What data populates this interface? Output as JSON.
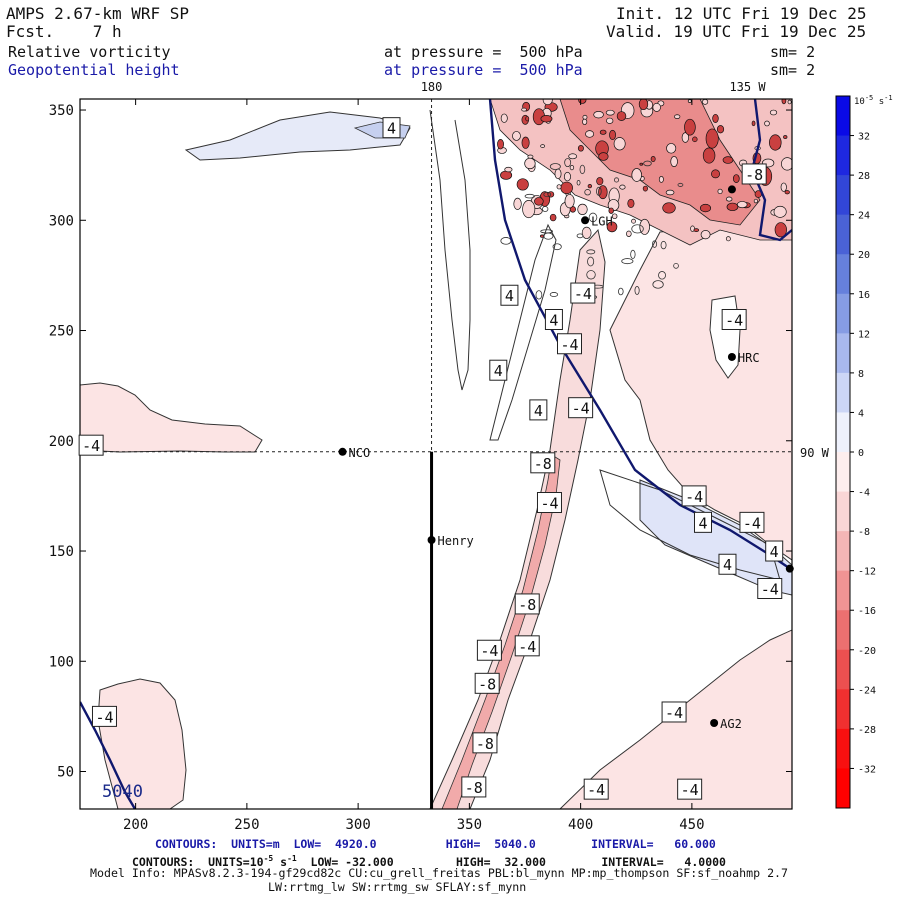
{
  "header": {
    "title": "AMPS 2.67-km WRF SP",
    "fcst": "Fcst.    7 h",
    "init": "Init. 12 UTC Fri 19 Dec 25",
    "valid": "Valid. 19 UTC Fri 19 Dec 25",
    "field1": {
      "name": "Relative vorticity",
      "pressure_label": "at pressure =  500 hPa",
      "sm": "sm= 2"
    },
    "field2": {
      "name": "Geopotential height",
      "pressure_label": "at pressure =  500 hPa",
      "sm": "sm= 2"
    }
  },
  "footer": {
    "line1": "CONTOURS:  UNITS=m  LOW=  4920.0          HIGH=  5040.0        INTERVAL=   60.000",
    "line2_pre": "CONTOURS:  UNITS=10",
    "line2_sup": "-5",
    "line2_mid": " s",
    "line2_sup2": "-1",
    "line2_post": "  LOW= -32.000         HIGH=  32.000        INTERVAL=   4.0000",
    "line3": "Model Info: MPASv8.2.3-194-gf29cd82c CU:cu_grell_freitas PBL:bl_mynn MP:mp_thompson SF:sf_noahmp 2.7",
    "line4": "LW:rrtmg_lw SW:rrtmg_sw SFLAY:sf_mynn"
  },
  "chart_data": {
    "type": "heatmap",
    "title": "Relative vorticity / Geopotential height at 500 hPa",
    "xlim": [
      175,
      495
    ],
    "ylim": [
      33,
      355
    ],
    "x_ticks": [
      200,
      250,
      300,
      350,
      400,
      450
    ],
    "y_ticks": [
      50,
      100,
      150,
      200,
      250,
      300,
      350
    ],
    "meridian_labels": [
      {
        "text": "180",
        "x": 333
      },
      {
        "text": "135 W",
        "x": 475
      }
    ],
    "latitude_label": {
      "text": "90 W",
      "y": 195
    },
    "crosshair": {
      "x": 333,
      "y": 195
    },
    "stations": [
      {
        "name": "NCO",
        "x": 293,
        "y": 195
      },
      {
        "name": "Henry",
        "x": 333,
        "y": 155
      },
      {
        "name": "HRC",
        "x": 468,
        "y": 238
      },
      {
        "name": "AG2",
        "x": 460,
        "y": 72
      },
      {
        "name": "LGH",
        "x": 402,
        "y": 300
      },
      {
        "name": "",
        "x": 468,
        "y": 314
      },
      {
        "name": "",
        "x": 494,
        "y": 142
      }
    ],
    "height_contour_label": "5040",
    "contour_labels": [
      {
        "text": "4",
        "x": 315,
        "y": 342
      },
      {
        "text": "-8",
        "x": 478,
        "y": 321
      },
      {
        "text": "4",
        "x": 368,
        "y": 266
      },
      {
        "text": "-4",
        "x": 401,
        "y": 267
      },
      {
        "text": "4",
        "x": 388,
        "y": 255
      },
      {
        "text": "-4",
        "x": 395,
        "y": 244
      },
      {
        "text": "-4",
        "x": 469,
        "y": 255
      },
      {
        "text": "4",
        "x": 363,
        "y": 232
      },
      {
        "text": "4",
        "x": 381,
        "y": 214
      },
      {
        "text": "-4",
        "x": 400,
        "y": 215
      },
      {
        "text": "-4",
        "x": 180,
        "y": 198
      },
      {
        "text": "-8",
        "x": 383,
        "y": 190
      },
      {
        "text": "-4",
        "x": 386,
        "y": 172
      },
      {
        "text": "-4",
        "x": 451,
        "y": 175
      },
      {
        "text": "4",
        "x": 455,
        "y": 163
      },
      {
        "text": "-4",
        "x": 477,
        "y": 163
      },
      {
        "text": "4",
        "x": 487,
        "y": 150
      },
      {
        "text": "4",
        "x": 466,
        "y": 144
      },
      {
        "text": "-4",
        "x": 485,
        "y": 133
      },
      {
        "text": "-8",
        "x": 376,
        "y": 126
      },
      {
        "text": "-4",
        "x": 376,
        "y": 107
      },
      {
        "text": "-4",
        "x": 359,
        "y": 105
      },
      {
        "text": "-8",
        "x": 358,
        "y": 90
      },
      {
        "text": "-4",
        "x": 186,
        "y": 75
      },
      {
        "text": "-4",
        "x": 442,
        "y": 77
      },
      {
        "text": "-8",
        "x": 357,
        "y": 63
      },
      {
        "text": "-8",
        "x": 352,
        "y": 43
      },
      {
        "text": "-4",
        "x": 407,
        "y": 42
      },
      {
        "text": "-4",
        "x": 449,
        "y": 42
      }
    ],
    "colorbar": {
      "unit_base": "10",
      "unit_exp": "-5",
      "unit_suffix": " s",
      "unit_suffix_exp": "-1",
      "levels": [
        36,
        32,
        28,
        24,
        20,
        16,
        12,
        8,
        4,
        0,
        -4,
        -8,
        -12,
        -16,
        -20,
        -24,
        -28,
        -32,
        -36
      ],
      "labels": [
        32,
        28,
        24,
        20,
        16,
        12,
        8,
        4,
        0,
        -4,
        -8,
        -12,
        -16,
        -20,
        -24,
        -28,
        -32
      ],
      "colors": [
        "#0a0ae6",
        "#1e28e0",
        "#3246d8",
        "#4a62d6",
        "#6680dc",
        "#869ce4",
        "#a8b8ee",
        "#ccd6f6",
        "#eef1fc",
        "#fdeeee",
        "#f9d6d6",
        "#f4b6b6",
        "#f09494",
        "#ec7070",
        "#ec5050",
        "#f03030",
        "#f81010",
        "#ff0000"
      ]
    }
  }
}
